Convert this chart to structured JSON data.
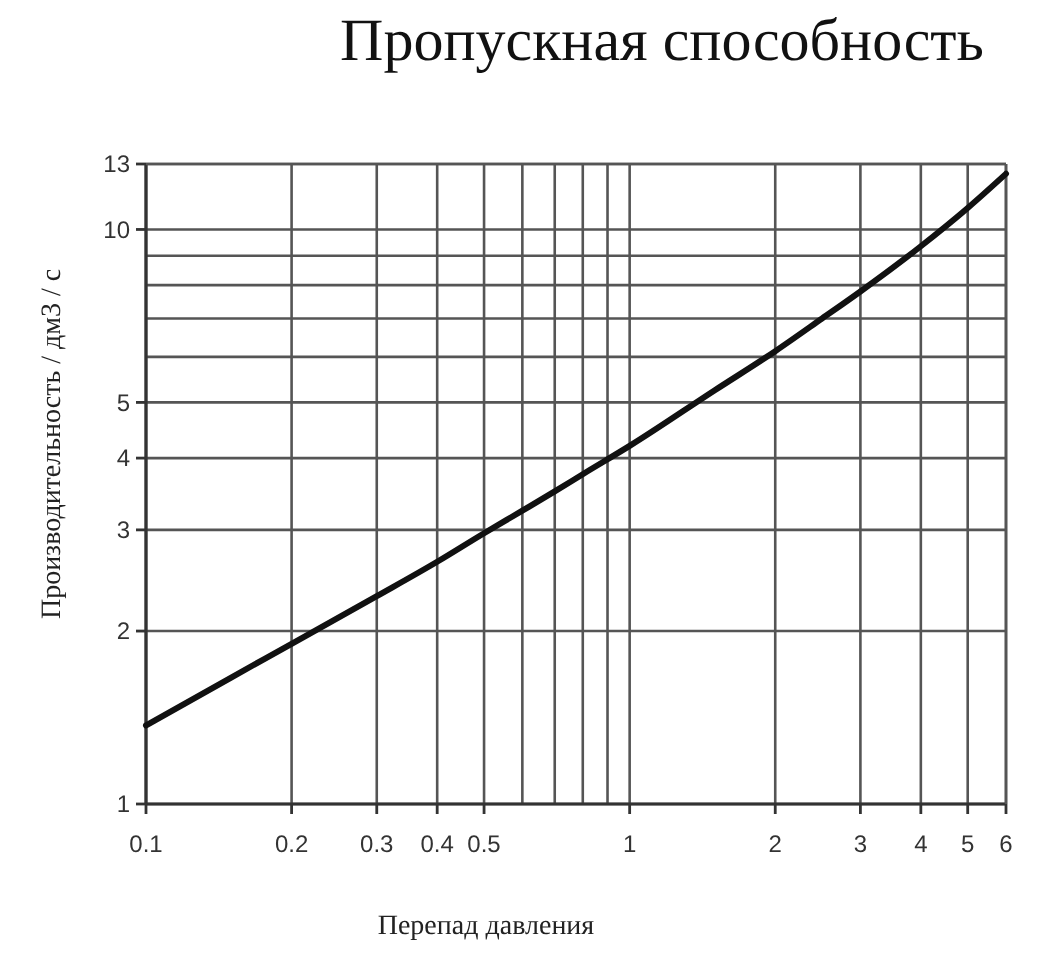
{
  "chart_data": {
    "type": "line",
    "title": "Пропускная способность",
    "xlabel": "Перепад давления",
    "ylabel": "Производительность / дм3 / с",
    "x": [
      0.1,
      0.15,
      0.2,
      0.3,
      0.4,
      0.5,
      0.6,
      0.7,
      0.8,
      1,
      1.5,
      2,
      2.5,
      3,
      4,
      5,
      6
    ],
    "series": [
      {
        "color": "#111111",
        "values": [
          1.37,
          1.66,
          1.9,
          2.3,
          2.64,
          2.96,
          3.24,
          3.5,
          3.75,
          4.2,
          5.25,
          6.14,
          7.0,
          7.8,
          9.35,
          10.9,
          12.5
        ]
      }
    ],
    "log": "xy",
    "xlim": [
      0.1,
      6
    ],
    "ylim": [
      1,
      13
    ],
    "xticks": [
      0.1,
      0.2,
      0.3,
      0.4,
      0.5,
      {
        "value": 0.6,
        "label": null
      },
      {
        "value": 0.7,
        "label": null
      },
      {
        "value": 0.8,
        "label": null
      },
      {
        "value": 0.9,
        "label": null
      },
      1,
      2,
      3,
      4,
      5,
      6
    ],
    "yticks": [
      1,
      2,
      3,
      4,
      5,
      {
        "value": 6,
        "label": null
      },
      {
        "value": 7,
        "label": null
      },
      {
        "value": 8,
        "label": null
      },
      {
        "value": 9,
        "label": null
      },
      10,
      13
    ],
    "grid": true,
    "marker": "none",
    "line_style": "solid"
  }
}
